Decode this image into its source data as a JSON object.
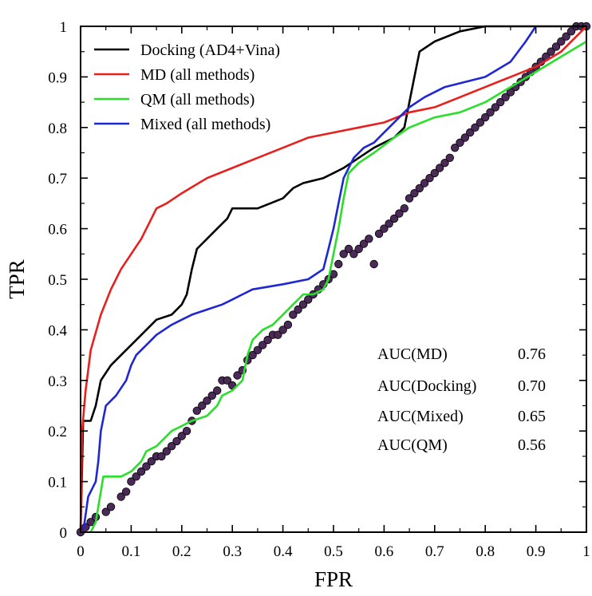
{
  "chart_data": {
    "type": "line",
    "title": "",
    "xlabel": "FPR",
    "ylabel": "TPR",
    "xlim": [
      0,
      1
    ],
    "ylim": [
      0,
      1
    ],
    "grid": false,
    "legend_position": "top-left",
    "x_ticks": [
      "0",
      "0.1",
      "0.2",
      "0.3",
      "0.4",
      "0.5",
      "0.6",
      "0.7",
      "0.8",
      "0.9",
      "1"
    ],
    "y_ticks": [
      "0",
      "0.1",
      "0.2",
      "0.3",
      "0.4",
      "0.5",
      "0.6",
      "0.7",
      "0.8",
      "0.9",
      "1"
    ],
    "series": [
      {
        "name": "Docking (AD4+Vina)",
        "color": "#000000",
        "points": [
          [
            0,
            0
          ],
          [
            0.005,
            0.22
          ],
          [
            0.02,
            0.22
          ],
          [
            0.03,
            0.25
          ],
          [
            0.04,
            0.3
          ],
          [
            0.06,
            0.33
          ],
          [
            0.08,
            0.35
          ],
          [
            0.1,
            0.37
          ],
          [
            0.13,
            0.4
          ],
          [
            0.15,
            0.42
          ],
          [
            0.18,
            0.43
          ],
          [
            0.2,
            0.45
          ],
          [
            0.21,
            0.47
          ],
          [
            0.22,
            0.52
          ],
          [
            0.23,
            0.56
          ],
          [
            0.25,
            0.58
          ],
          [
            0.27,
            0.6
          ],
          [
            0.29,
            0.62
          ],
          [
            0.3,
            0.64
          ],
          [
            0.33,
            0.64
          ],
          [
            0.35,
            0.64
          ],
          [
            0.4,
            0.66
          ],
          [
            0.42,
            0.68
          ],
          [
            0.44,
            0.69
          ],
          [
            0.48,
            0.7
          ],
          [
            0.5,
            0.71
          ],
          [
            0.52,
            0.72
          ],
          [
            0.55,
            0.74
          ],
          [
            0.58,
            0.76
          ],
          [
            0.6,
            0.77
          ],
          [
            0.62,
            0.78
          ],
          [
            0.64,
            0.8
          ],
          [
            0.65,
            0.85
          ],
          [
            0.66,
            0.9
          ],
          [
            0.67,
            0.95
          ],
          [
            0.7,
            0.97
          ],
          [
            0.75,
            0.99
          ],
          [
            0.8,
            1.0
          ],
          [
            0.9,
            1.0
          ],
          [
            1.0,
            1.0
          ]
        ]
      },
      {
        "name": "MD (all methods)",
        "color": "#e8201c",
        "points": [
          [
            0,
            0
          ],
          [
            0.003,
            0.2
          ],
          [
            0.01,
            0.28
          ],
          [
            0.02,
            0.36
          ],
          [
            0.04,
            0.43
          ],
          [
            0.06,
            0.48
          ],
          [
            0.08,
            0.52
          ],
          [
            0.1,
            0.55
          ],
          [
            0.12,
            0.58
          ],
          [
            0.14,
            0.62
          ],
          [
            0.15,
            0.64
          ],
          [
            0.17,
            0.65
          ],
          [
            0.2,
            0.67
          ],
          [
            0.25,
            0.7
          ],
          [
            0.3,
            0.72
          ],
          [
            0.35,
            0.74
          ],
          [
            0.4,
            0.76
          ],
          [
            0.45,
            0.78
          ],
          [
            0.5,
            0.79
          ],
          [
            0.55,
            0.8
          ],
          [
            0.6,
            0.81
          ],
          [
            0.65,
            0.83
          ],
          [
            0.7,
            0.84
          ],
          [
            0.75,
            0.86
          ],
          [
            0.8,
            0.88
          ],
          [
            0.85,
            0.9
          ],
          [
            0.9,
            0.92
          ],
          [
            0.95,
            0.95
          ],
          [
            1.0,
            1.0
          ]
        ]
      },
      {
        "name": "QM (all methods)",
        "color": "#2adf2a",
        "points": [
          [
            0.02,
            0
          ],
          [
            0.03,
            0.02
          ],
          [
            0.035,
            0.05
          ],
          [
            0.045,
            0.11
          ],
          [
            0.08,
            0.11
          ],
          [
            0.1,
            0.12
          ],
          [
            0.12,
            0.14
          ],
          [
            0.13,
            0.16
          ],
          [
            0.15,
            0.17
          ],
          [
            0.18,
            0.2
          ],
          [
            0.2,
            0.21
          ],
          [
            0.22,
            0.22
          ],
          [
            0.25,
            0.23
          ],
          [
            0.27,
            0.25
          ],
          [
            0.28,
            0.27
          ],
          [
            0.3,
            0.28
          ],
          [
            0.32,
            0.3
          ],
          [
            0.33,
            0.35
          ],
          [
            0.34,
            0.38
          ],
          [
            0.36,
            0.4
          ],
          [
            0.38,
            0.41
          ],
          [
            0.4,
            0.43
          ],
          [
            0.42,
            0.45
          ],
          [
            0.44,
            0.47
          ],
          [
            0.46,
            0.47
          ],
          [
            0.48,
            0.48
          ],
          [
            0.49,
            0.5
          ],
          [
            0.5,
            0.55
          ],
          [
            0.51,
            0.6
          ],
          [
            0.52,
            0.66
          ],
          [
            0.53,
            0.71
          ],
          [
            0.55,
            0.73
          ],
          [
            0.58,
            0.75
          ],
          [
            0.62,
            0.78
          ],
          [
            0.65,
            0.8
          ],
          [
            0.7,
            0.82
          ],
          [
            0.75,
            0.83
          ],
          [
            0.8,
            0.85
          ],
          [
            0.85,
            0.88
          ],
          [
            0.9,
            0.91
          ],
          [
            0.95,
            0.94
          ],
          [
            1.0,
            0.97
          ]
        ]
      },
      {
        "name": "Mixed (all methods)",
        "color": "#1f27d4",
        "points": [
          [
            0.005,
            0
          ],
          [
            0.015,
            0.07
          ],
          [
            0.03,
            0.1
          ],
          [
            0.035,
            0.14
          ],
          [
            0.04,
            0.2
          ],
          [
            0.05,
            0.25
          ],
          [
            0.07,
            0.27
          ],
          [
            0.09,
            0.3
          ],
          [
            0.1,
            0.33
          ],
          [
            0.11,
            0.35
          ],
          [
            0.13,
            0.37
          ],
          [
            0.15,
            0.39
          ],
          [
            0.18,
            0.41
          ],
          [
            0.2,
            0.42
          ],
          [
            0.22,
            0.43
          ],
          [
            0.25,
            0.44
          ],
          [
            0.28,
            0.45
          ],
          [
            0.3,
            0.46
          ],
          [
            0.32,
            0.47
          ],
          [
            0.34,
            0.48
          ],
          [
            0.4,
            0.49
          ],
          [
            0.45,
            0.5
          ],
          [
            0.48,
            0.52
          ],
          [
            0.49,
            0.56
          ],
          [
            0.5,
            0.6
          ],
          [
            0.51,
            0.65
          ],
          [
            0.52,
            0.7
          ],
          [
            0.54,
            0.74
          ],
          [
            0.56,
            0.76
          ],
          [
            0.58,
            0.77
          ],
          [
            0.6,
            0.79
          ],
          [
            0.63,
            0.82
          ],
          [
            0.65,
            0.84
          ],
          [
            0.68,
            0.86
          ],
          [
            0.72,
            0.88
          ],
          [
            0.8,
            0.9
          ],
          [
            0.85,
            0.93
          ],
          [
            0.88,
            0.97
          ],
          [
            0.9,
            1.0
          ]
        ]
      },
      {
        "name": "Random",
        "style": "markers",
        "color": "#4a2a57",
        "points": [
          [
            0.0,
            0.0
          ],
          [
            0.01,
            0.01
          ],
          [
            0.02,
            0.02
          ],
          [
            0.03,
            0.03
          ],
          [
            0.05,
            0.04
          ],
          [
            0.06,
            0.05
          ],
          [
            0.08,
            0.07
          ],
          [
            0.09,
            0.08
          ],
          [
            0.1,
            0.1
          ],
          [
            0.11,
            0.11
          ],
          [
            0.12,
            0.12
          ],
          [
            0.13,
            0.13
          ],
          [
            0.14,
            0.14
          ],
          [
            0.15,
            0.15
          ],
          [
            0.16,
            0.15
          ],
          [
            0.17,
            0.16
          ],
          [
            0.18,
            0.17
          ],
          [
            0.19,
            0.18
          ],
          [
            0.2,
            0.19
          ],
          [
            0.21,
            0.2
          ],
          [
            0.22,
            0.22
          ],
          [
            0.23,
            0.24
          ],
          [
            0.24,
            0.25
          ],
          [
            0.25,
            0.26
          ],
          [
            0.26,
            0.27
          ],
          [
            0.27,
            0.28
          ],
          [
            0.28,
            0.3
          ],
          [
            0.29,
            0.3
          ],
          [
            0.3,
            0.29
          ],
          [
            0.31,
            0.31
          ],
          [
            0.32,
            0.32
          ],
          [
            0.33,
            0.34
          ],
          [
            0.34,
            0.35
          ],
          [
            0.35,
            0.36
          ],
          [
            0.36,
            0.37
          ],
          [
            0.37,
            0.38
          ],
          [
            0.38,
            0.39
          ],
          [
            0.39,
            0.39
          ],
          [
            0.4,
            0.4
          ],
          [
            0.41,
            0.41
          ],
          [
            0.42,
            0.43
          ],
          [
            0.43,
            0.44
          ],
          [
            0.44,
            0.45
          ],
          [
            0.45,
            0.46
          ],
          [
            0.46,
            0.47
          ],
          [
            0.47,
            0.48
          ],
          [
            0.48,
            0.49
          ],
          [
            0.49,
            0.5
          ],
          [
            0.5,
            0.51
          ],
          [
            0.51,
            0.53
          ],
          [
            0.52,
            0.55
          ],
          [
            0.53,
            0.56
          ],
          [
            0.54,
            0.55
          ],
          [
            0.55,
            0.56
          ],
          [
            0.56,
            0.57
          ],
          [
            0.57,
            0.58
          ],
          [
            0.58,
            0.53
          ],
          [
            0.59,
            0.59
          ],
          [
            0.6,
            0.6
          ],
          [
            0.61,
            0.61
          ],
          [
            0.62,
            0.62
          ],
          [
            0.63,
            0.63
          ],
          [
            0.64,
            0.64
          ],
          [
            0.65,
            0.66
          ],
          [
            0.66,
            0.67
          ],
          [
            0.67,
            0.68
          ],
          [
            0.68,
            0.69
          ],
          [
            0.69,
            0.7
          ],
          [
            0.7,
            0.71
          ],
          [
            0.71,
            0.72
          ],
          [
            0.72,
            0.73
          ],
          [
            0.73,
            0.74
          ],
          [
            0.74,
            0.76
          ],
          [
            0.75,
            0.77
          ],
          [
            0.76,
            0.78
          ],
          [
            0.77,
            0.79
          ],
          [
            0.78,
            0.8
          ],
          [
            0.79,
            0.81
          ],
          [
            0.8,
            0.82
          ],
          [
            0.81,
            0.83
          ],
          [
            0.82,
            0.84
          ],
          [
            0.83,
            0.85
          ],
          [
            0.84,
            0.86
          ],
          [
            0.85,
            0.87
          ],
          [
            0.86,
            0.88
          ],
          [
            0.87,
            0.89
          ],
          [
            0.88,
            0.9
          ],
          [
            0.89,
            0.91
          ],
          [
            0.9,
            0.92
          ],
          [
            0.91,
            0.93
          ],
          [
            0.92,
            0.94
          ],
          [
            0.93,
            0.95
          ],
          [
            0.94,
            0.96
          ],
          [
            0.95,
            0.97
          ],
          [
            0.96,
            0.98
          ],
          [
            0.97,
            0.99
          ],
          [
            0.98,
            1.0
          ],
          [
            0.99,
            1.0
          ],
          [
            1.0,
            1.0
          ]
        ]
      }
    ],
    "annotations": [
      {
        "label": "AUC(MD)",
        "value": "0.76"
      },
      {
        "label": "AUC(Docking)",
        "value": "0.70"
      },
      {
        "label": "AUC(Mixed)",
        "value": "0.65"
      },
      {
        "label": "AUC(QM)",
        "value": "0.56"
      }
    ]
  }
}
